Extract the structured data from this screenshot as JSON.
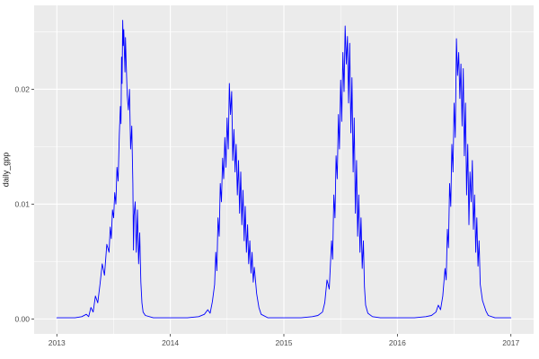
{
  "chart_data": {
    "type": "line",
    "title": "",
    "xlabel": "",
    "ylabel": "daily_gpp",
    "legend": "none",
    "grid": "on",
    "panel_bg": "#EBEBEB",
    "grid_color": "#FFFFFF",
    "line_color": "#0000FF",
    "tick_color": "#333333",
    "xlim": [
      2012.8,
      2017.2
    ],
    "ylim": [
      -0.0013,
      0.0273
    ],
    "x_ticks": [
      2013,
      2014,
      2015,
      2016,
      2017
    ],
    "x_tick_labels": [
      "2013",
      "2014",
      "2015",
      "2016",
      "2017"
    ],
    "x_minor": [
      2013.5,
      2014.5,
      2015.5,
      2016.5
    ],
    "y_ticks": [
      0,
      0.01,
      0.02
    ],
    "y_tick_labels": [
      "0.00",
      "0.01",
      "0.02"
    ],
    "y_minor": [
      0.005,
      0.015,
      0.025
    ],
    "series": [
      {
        "name": "daily_gpp",
        "points": [
          [
            2013.0,
            0.0001
          ],
          [
            2013.08,
            0.0001
          ],
          [
            2013.16,
            0.0001
          ],
          [
            2013.22,
            0.0002
          ],
          [
            2013.26,
            0.0004
          ],
          [
            2013.28,
            0.0002
          ],
          [
            2013.3,
            0.001
          ],
          [
            2013.32,
            0.0006
          ],
          [
            2013.34,
            0.002
          ],
          [
            2013.36,
            0.0014
          ],
          [
            2013.38,
            0.003
          ],
          [
            2013.4,
            0.0048
          ],
          [
            2013.42,
            0.0038
          ],
          [
            2013.44,
            0.0065
          ],
          [
            2013.46,
            0.0058
          ],
          [
            2013.47,
            0.008
          ],
          [
            2013.48,
            0.007
          ],
          [
            2013.49,
            0.0095
          ],
          [
            2013.5,
            0.0088
          ],
          [
            2013.51,
            0.011
          ],
          [
            2013.52,
            0.01
          ],
          [
            2013.53,
            0.0132
          ],
          [
            2013.54,
            0.012
          ],
          [
            2013.55,
            0.016
          ],
          [
            2013.56,
            0.0185
          ],
          [
            2013.565,
            0.017
          ],
          [
            2013.57,
            0.0228
          ],
          [
            2013.575,
            0.0205
          ],
          [
            2013.58,
            0.026
          ],
          [
            2013.585,
            0.0238
          ],
          [
            2013.59,
            0.0252
          ],
          [
            2013.6,
            0.0215
          ],
          [
            2013.605,
            0.0245
          ],
          [
            2013.61,
            0.0225
          ],
          [
            2013.62,
            0.0195
          ],
          [
            2013.63,
            0.0182
          ],
          [
            2013.64,
            0.02
          ],
          [
            2013.65,
            0.0148
          ],
          [
            2013.66,
            0.0168
          ],
          [
            2013.67,
            0.0118
          ],
          [
            2013.675,
            0.006
          ],
          [
            2013.68,
            0.009
          ],
          [
            2013.69,
            0.0102
          ],
          [
            2013.7,
            0.0058
          ],
          [
            2013.71,
            0.0095
          ],
          [
            2013.72,
            0.0048
          ],
          [
            2013.73,
            0.0075
          ],
          [
            2013.74,
            0.0032
          ],
          [
            2013.75,
            0.0014
          ],
          [
            2013.76,
            0.0006
          ],
          [
            2013.78,
            0.0003
          ],
          [
            2013.85,
            0.0001
          ],
          [
            2013.95,
            0.0001
          ],
          [
            2014.05,
            0.0001
          ],
          [
            2014.15,
            0.0001
          ],
          [
            2014.25,
            0.0002
          ],
          [
            2014.3,
            0.0004
          ],
          [
            2014.33,
            0.0008
          ],
          [
            2014.35,
            0.0005
          ],
          [
            2014.37,
            0.0015
          ],
          [
            2014.39,
            0.003
          ],
          [
            2014.4,
            0.0058
          ],
          [
            2014.41,
            0.0042
          ],
          [
            2014.42,
            0.0088
          ],
          [
            2014.43,
            0.0072
          ],
          [
            2014.44,
            0.0118
          ],
          [
            2014.45,
            0.0102
          ],
          [
            2014.46,
            0.014
          ],
          [
            2014.47,
            0.0122
          ],
          [
            2014.48,
            0.0158
          ],
          [
            2014.49,
            0.0132
          ],
          [
            2014.5,
            0.0175
          ],
          [
            2014.51,
            0.0148
          ],
          [
            2014.52,
            0.0205
          ],
          [
            2014.53,
            0.0178
          ],
          [
            2014.54,
            0.0198
          ],
          [
            2014.55,
            0.0138
          ],
          [
            2014.56,
            0.0165
          ],
          [
            2014.57,
            0.0128
          ],
          [
            2014.58,
            0.0152
          ],
          [
            2014.59,
            0.0108
          ],
          [
            2014.6,
            0.0138
          ],
          [
            2014.61,
            0.0092
          ],
          [
            2014.62,
            0.0128
          ],
          [
            2014.63,
            0.0082
          ],
          [
            2014.64,
            0.0112
          ],
          [
            2014.65,
            0.0068
          ],
          [
            2014.66,
            0.0098
          ],
          [
            2014.67,
            0.0058
          ],
          [
            2014.68,
            0.0082
          ],
          [
            2014.69,
            0.0048
          ],
          [
            2014.7,
            0.0068
          ],
          [
            2014.71,
            0.004
          ],
          [
            2014.72,
            0.0058
          ],
          [
            2014.73,
            0.0032
          ],
          [
            2014.74,
            0.0045
          ],
          [
            2014.76,
            0.0022
          ],
          [
            2014.78,
            0.001
          ],
          [
            2014.8,
            0.0004
          ],
          [
            2014.86,
            0.0001
          ],
          [
            2014.95,
            0.0001
          ],
          [
            2015.05,
            0.0001
          ],
          [
            2015.15,
            0.0001
          ],
          [
            2015.25,
            0.0002
          ],
          [
            2015.3,
            0.0003
          ],
          [
            2015.34,
            0.0006
          ],
          [
            2015.36,
            0.0014
          ],
          [
            2015.38,
            0.0034
          ],
          [
            2015.4,
            0.0026
          ],
          [
            2015.42,
            0.0068
          ],
          [
            2015.43,
            0.0052
          ],
          [
            2015.44,
            0.0108
          ],
          [
            2015.45,
            0.0088
          ],
          [
            2015.46,
            0.0142
          ],
          [
            2015.47,
            0.0122
          ],
          [
            2015.48,
            0.0178
          ],
          [
            2015.49,
            0.0148
          ],
          [
            2015.5,
            0.0208
          ],
          [
            2015.51,
            0.0172
          ],
          [
            2015.52,
            0.0232
          ],
          [
            2015.53,
            0.0198
          ],
          [
            2015.54,
            0.0255
          ],
          [
            2015.55,
            0.0222
          ],
          [
            2015.56,
            0.0246
          ],
          [
            2015.57,
            0.0188
          ],
          [
            2015.58,
            0.024
          ],
          [
            2015.59,
            0.0162
          ],
          [
            2015.6,
            0.021
          ],
          [
            2015.61,
            0.0128
          ],
          [
            2015.62,
            0.0175
          ],
          [
            2015.63,
            0.0092
          ],
          [
            2015.64,
            0.0138
          ],
          [
            2015.65,
            0.0072
          ],
          [
            2015.66,
            0.0108
          ],
          [
            2015.67,
            0.0058
          ],
          [
            2015.68,
            0.0088
          ],
          [
            2015.69,
            0.0044
          ],
          [
            2015.7,
            0.0068
          ],
          [
            2015.71,
            0.0028
          ],
          [
            2015.72,
            0.0012
          ],
          [
            2015.74,
            0.0005
          ],
          [
            2015.78,
            0.0002
          ],
          [
            2015.85,
            0.0001
          ],
          [
            2015.95,
            0.0001
          ],
          [
            2016.05,
            0.0001
          ],
          [
            2016.15,
            0.0001
          ],
          [
            2016.25,
            0.0002
          ],
          [
            2016.3,
            0.0003
          ],
          [
            2016.34,
            0.0006
          ],
          [
            2016.36,
            0.0012
          ],
          [
            2016.38,
            0.0008
          ],
          [
            2016.4,
            0.002
          ],
          [
            2016.42,
            0.0044
          ],
          [
            2016.43,
            0.0034
          ],
          [
            2016.44,
            0.0078
          ],
          [
            2016.45,
            0.0062
          ],
          [
            2016.46,
            0.0118
          ],
          [
            2016.47,
            0.0098
          ],
          [
            2016.48,
            0.0152
          ],
          [
            2016.49,
            0.0128
          ],
          [
            2016.5,
            0.0188
          ],
          [
            2016.51,
            0.0158
          ],
          [
            2016.52,
            0.0244
          ],
          [
            2016.53,
            0.0212
          ],
          [
            2016.54,
            0.0232
          ],
          [
            2016.55,
            0.0192
          ],
          [
            2016.56,
            0.0222
          ],
          [
            2016.57,
            0.0168
          ],
          [
            2016.58,
            0.0218
          ],
          [
            2016.59,
            0.0142
          ],
          [
            2016.6,
            0.0188
          ],
          [
            2016.61,
            0.0108
          ],
          [
            2016.62,
            0.0152
          ],
          [
            2016.63,
            0.0082
          ],
          [
            2016.64,
            0.0128
          ],
          [
            2016.65,
            0.0102
          ],
          [
            2016.66,
            0.0138
          ],
          [
            2016.67,
            0.0078
          ],
          [
            2016.68,
            0.0108
          ],
          [
            2016.69,
            0.0058
          ],
          [
            2016.7,
            0.0088
          ],
          [
            2016.71,
            0.0046
          ],
          [
            2016.72,
            0.0068
          ],
          [
            2016.73,
            0.003
          ],
          [
            2016.75,
            0.0016
          ],
          [
            2016.78,
            0.0007
          ],
          [
            2016.8,
            0.0003
          ],
          [
            2016.86,
            0.0001
          ],
          [
            2016.93,
            0.0001
          ],
          [
            2017.0,
            0.0001
          ]
        ]
      }
    ]
  }
}
